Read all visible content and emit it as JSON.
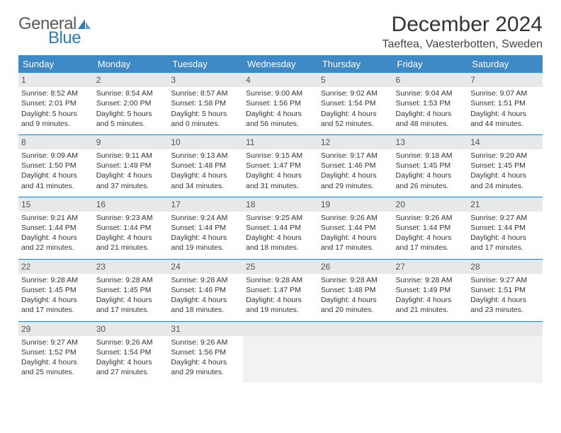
{
  "logo": {
    "word1": "General",
    "word2": "Blue"
  },
  "title": "December 2024",
  "subtitle": "Taeftea, Vaesterbotten, Sweden",
  "colors": {
    "header_bg": "#3d8ac7",
    "header_text": "#ffffff",
    "daynum_bg": "#e6e8ea",
    "rule": "#2d7dc0",
    "body_text": "#333333",
    "page_bg": "#ffffff"
  },
  "typography": {
    "title_fontsize": 30,
    "subtitle_fontsize": 16,
    "header_fontsize": 13,
    "cell_fontsize": 10.5
  },
  "day_headers": [
    "Sunday",
    "Monday",
    "Tuesday",
    "Wednesday",
    "Thursday",
    "Friday",
    "Saturday"
  ],
  "weeks": [
    [
      {
        "n": "1",
        "sr": "Sunrise: 8:52 AM",
        "ss": "Sunset: 2:01 PM",
        "dl": "Daylight: 5 hours and 9 minutes."
      },
      {
        "n": "2",
        "sr": "Sunrise: 8:54 AM",
        "ss": "Sunset: 2:00 PM",
        "dl": "Daylight: 5 hours and 5 minutes."
      },
      {
        "n": "3",
        "sr": "Sunrise: 8:57 AM",
        "ss": "Sunset: 1:58 PM",
        "dl": "Daylight: 5 hours and 0 minutes."
      },
      {
        "n": "4",
        "sr": "Sunrise: 9:00 AM",
        "ss": "Sunset: 1:56 PM",
        "dl": "Daylight: 4 hours and 56 minutes."
      },
      {
        "n": "5",
        "sr": "Sunrise: 9:02 AM",
        "ss": "Sunset: 1:54 PM",
        "dl": "Daylight: 4 hours and 52 minutes."
      },
      {
        "n": "6",
        "sr": "Sunrise: 9:04 AM",
        "ss": "Sunset: 1:53 PM",
        "dl": "Daylight: 4 hours and 48 minutes."
      },
      {
        "n": "7",
        "sr": "Sunrise: 9:07 AM",
        "ss": "Sunset: 1:51 PM",
        "dl": "Daylight: 4 hours and 44 minutes."
      }
    ],
    [
      {
        "n": "8",
        "sr": "Sunrise: 9:09 AM",
        "ss": "Sunset: 1:50 PM",
        "dl": "Daylight: 4 hours and 41 minutes."
      },
      {
        "n": "9",
        "sr": "Sunrise: 9:11 AM",
        "ss": "Sunset: 1:49 PM",
        "dl": "Daylight: 4 hours and 37 minutes."
      },
      {
        "n": "10",
        "sr": "Sunrise: 9:13 AM",
        "ss": "Sunset: 1:48 PM",
        "dl": "Daylight: 4 hours and 34 minutes."
      },
      {
        "n": "11",
        "sr": "Sunrise: 9:15 AM",
        "ss": "Sunset: 1:47 PM",
        "dl": "Daylight: 4 hours and 31 minutes."
      },
      {
        "n": "12",
        "sr": "Sunrise: 9:17 AM",
        "ss": "Sunset: 1:46 PM",
        "dl": "Daylight: 4 hours and 29 minutes."
      },
      {
        "n": "13",
        "sr": "Sunrise: 9:18 AM",
        "ss": "Sunset: 1:45 PM",
        "dl": "Daylight: 4 hours and 26 minutes."
      },
      {
        "n": "14",
        "sr": "Sunrise: 9:20 AM",
        "ss": "Sunset: 1:45 PM",
        "dl": "Daylight: 4 hours and 24 minutes."
      }
    ],
    [
      {
        "n": "15",
        "sr": "Sunrise: 9:21 AM",
        "ss": "Sunset: 1:44 PM",
        "dl": "Daylight: 4 hours and 22 minutes."
      },
      {
        "n": "16",
        "sr": "Sunrise: 9:23 AM",
        "ss": "Sunset: 1:44 PM",
        "dl": "Daylight: 4 hours and 21 minutes."
      },
      {
        "n": "17",
        "sr": "Sunrise: 9:24 AM",
        "ss": "Sunset: 1:44 PM",
        "dl": "Daylight: 4 hours and 19 minutes."
      },
      {
        "n": "18",
        "sr": "Sunrise: 9:25 AM",
        "ss": "Sunset: 1:44 PM",
        "dl": "Daylight: 4 hours and 18 minutes."
      },
      {
        "n": "19",
        "sr": "Sunrise: 9:26 AM",
        "ss": "Sunset: 1:44 PM",
        "dl": "Daylight: 4 hours and 17 minutes."
      },
      {
        "n": "20",
        "sr": "Sunrise: 9:26 AM",
        "ss": "Sunset: 1:44 PM",
        "dl": "Daylight: 4 hours and 17 minutes."
      },
      {
        "n": "21",
        "sr": "Sunrise: 9:27 AM",
        "ss": "Sunset: 1:44 PM",
        "dl": "Daylight: 4 hours and 17 minutes."
      }
    ],
    [
      {
        "n": "22",
        "sr": "Sunrise: 9:28 AM",
        "ss": "Sunset: 1:45 PM",
        "dl": "Daylight: 4 hours and 17 minutes."
      },
      {
        "n": "23",
        "sr": "Sunrise: 9:28 AM",
        "ss": "Sunset: 1:45 PM",
        "dl": "Daylight: 4 hours and 17 minutes."
      },
      {
        "n": "24",
        "sr": "Sunrise: 9:28 AM",
        "ss": "Sunset: 1:46 PM",
        "dl": "Daylight: 4 hours and 18 minutes."
      },
      {
        "n": "25",
        "sr": "Sunrise: 9:28 AM",
        "ss": "Sunset: 1:47 PM",
        "dl": "Daylight: 4 hours and 19 minutes."
      },
      {
        "n": "26",
        "sr": "Sunrise: 9:28 AM",
        "ss": "Sunset: 1:48 PM",
        "dl": "Daylight: 4 hours and 20 minutes."
      },
      {
        "n": "27",
        "sr": "Sunrise: 9:28 AM",
        "ss": "Sunset: 1:49 PM",
        "dl": "Daylight: 4 hours and 21 minutes."
      },
      {
        "n": "28",
        "sr": "Sunrise: 9:27 AM",
        "ss": "Sunset: 1:51 PM",
        "dl": "Daylight: 4 hours and 23 minutes."
      }
    ],
    [
      {
        "n": "29",
        "sr": "Sunrise: 9:27 AM",
        "ss": "Sunset: 1:52 PM",
        "dl": "Daylight: 4 hours and 25 minutes."
      },
      {
        "n": "30",
        "sr": "Sunrise: 9:26 AM",
        "ss": "Sunset: 1:54 PM",
        "dl": "Daylight: 4 hours and 27 minutes."
      },
      {
        "n": "31",
        "sr": "Sunrise: 9:26 AM",
        "ss": "Sunset: 1:56 PM",
        "dl": "Daylight: 4 hours and 29 minutes."
      },
      {
        "empty": true
      },
      {
        "empty": true
      },
      {
        "empty": true
      },
      {
        "empty": true
      }
    ]
  ]
}
